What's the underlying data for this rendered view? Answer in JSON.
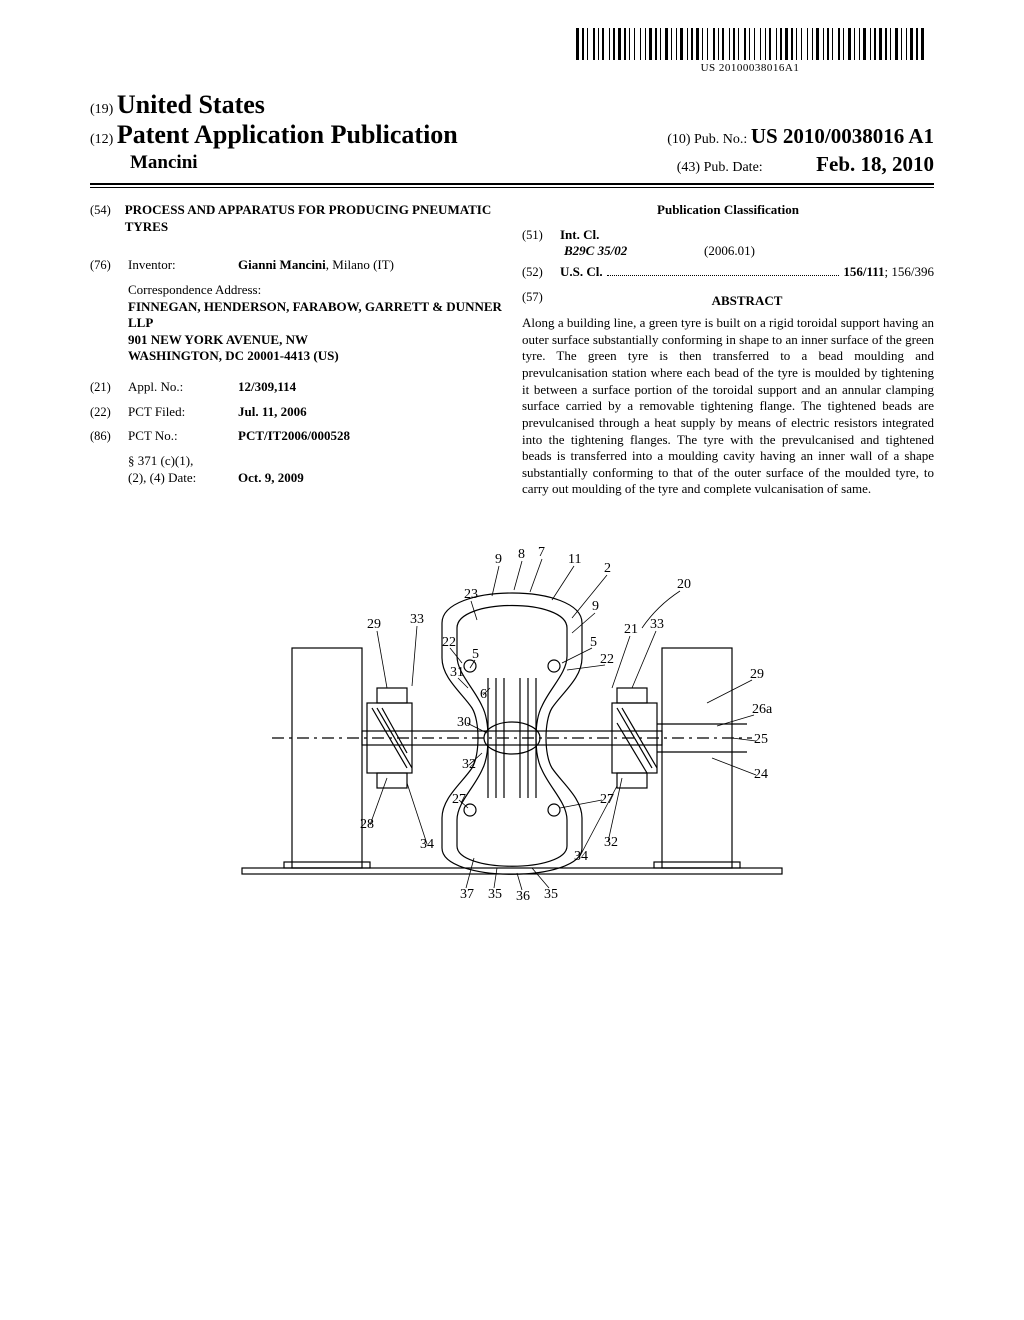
{
  "barcode_text": "US 20100038016A1",
  "header": {
    "inid_country": "(19)",
    "country": "United States",
    "inid_pubtype": "(12)",
    "pubtype": "Patent Application Publication",
    "inid_pubno": "(10)",
    "pubno_label": "Pub. No.:",
    "pubno": "US 2010/0038016 A1",
    "author_surname": "Mancini",
    "inid_pubdate": "(43)",
    "pubdate_label": "Pub. Date:",
    "pubdate": "Feb. 18, 2010"
  },
  "left": {
    "inid_title": "(54)",
    "title": "PROCESS AND APPARATUS FOR PRODUCING PNEUMATIC TYRES",
    "inid_inventor": "(76)",
    "inventor_label": "Inventor:",
    "inventor": "Gianni Mancini",
    "inventor_loc": ", Milano (IT)",
    "corr_label": "Correspondence Address:",
    "corr_name": "FINNEGAN, HENDERSON, FARABOW, GARRETT & DUNNER",
    "corr_llp": "LLP",
    "corr_street": "901 NEW YORK AVENUE, NW",
    "corr_city": "WASHINGTON, DC 20001-4413 (US)",
    "inid_appl": "(21)",
    "appl_label": "Appl. No.:",
    "appl_no": "12/309,114",
    "inid_pctfiled": "(22)",
    "pctfiled_label": "PCT Filed:",
    "pctfiled": "Jul. 11, 2006",
    "inid_pctno": "(86)",
    "pctno_label": "PCT No.:",
    "pctno": "PCT/IT2006/000528",
    "s371_label": "§ 371 (c)(1),",
    "s371_date_label": "(2), (4) Date:",
    "s371_date": "Oct. 9, 2009"
  },
  "right": {
    "pub_class_heading": "Publication Classification",
    "inid_intcl": "(51)",
    "intcl_label": "Int. Cl.",
    "ipc_code": "B29C 35/02",
    "ipc_date": "(2006.01)",
    "inid_uscl": "(52)",
    "uscl_label": "U.S. Cl.",
    "uscl_main": "156/111",
    "uscl_other": "; 156/396",
    "inid_abstract": "(57)",
    "abstract_heading": "ABSTRACT",
    "abstract": "Along a building line, a green tyre is built on a rigid toroidal support having an outer surface substantially conforming in shape to an inner surface of the green tyre. The green tyre is then transferred to a bead moulding and prevulcanisation station where each bead of the tyre is moulded by tightening it between a surface portion of the toroidal support and an annular clamping surface carried by a removable tightening flange. The tightened beads are prevulcanised through a heat supply by means of electric resistors integrated into the tightening flanges. The tyre with the prevulcanised and tightened beads is transferred into a moulding cavity having an inner wall of a shape substantially conforming to that of the outer surface of the moulded tyre, to carry out moulding of the tyre and complete vulcanisation of same."
  },
  "figure": {
    "ref_numerals": [
      "2",
      "5",
      "5",
      "6",
      "7",
      "8",
      "9",
      "9",
      "11",
      "20",
      "21",
      "22",
      "22",
      "23",
      "24",
      "25",
      "26a",
      "27",
      "27",
      "28",
      "29",
      "29",
      "30",
      "31",
      "32",
      "32",
      "33",
      "33",
      "34",
      "34",
      "35",
      "35",
      "36",
      "37"
    ],
    "colors": {
      "stroke": "#000000",
      "fill": "#ffffff",
      "hatch": "#000000"
    },
    "line_width": 1.2
  },
  "barcode_widths": [
    3,
    1,
    2,
    1,
    1,
    3,
    2,
    1,
    1,
    1,
    2,
    3,
    1,
    1,
    2,
    1,
    3,
    1,
    2,
    1,
    1,
    2,
    1,
    3,
    1,
    2,
    1,
    1,
    3,
    1,
    2,
    1,
    1,
    2,
    3,
    1,
    1,
    2,
    1,
    1,
    3,
    2,
    1,
    1,
    2,
    1,
    3,
    1,
    1,
    2,
    1,
    3,
    2,
    1,
    1,
    1,
    2,
    3,
    1,
    1,
    2,
    1,
    1,
    3,
    2,
    1,
    1,
    2,
    1,
    3,
    1,
    2,
    1,
    1,
    2,
    3,
    1,
    1,
    2,
    1,
    3,
    1,
    2,
    1,
    1,
    2,
    1,
    3,
    1,
    2,
    1,
    1,
    3,
    2,
    1,
    1,
    2,
    1,
    1,
    3,
    2,
    1,
    1,
    2,
    3,
    1,
    1,
    2,
    1,
    1,
    3,
    2,
    1,
    1,
    2,
    1,
    3,
    1,
    2,
    1,
    1,
    2,
    3,
    1,
    1,
    2,
    1,
    1,
    3,
    1,
    2,
    1,
    3
  ]
}
